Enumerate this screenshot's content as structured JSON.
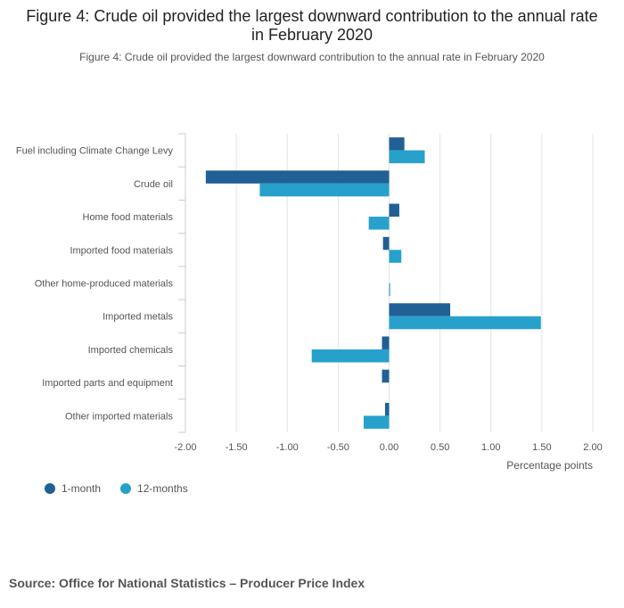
{
  "chart_data": {
    "type": "bar",
    "orientation": "horizontal",
    "title": "Figure 4: Crude oil provided the largest downward contribution to the annual rate in February 2020",
    "subtitle": "Figure 4: Crude oil provided the largest downward contribution to the annual rate in February 2020",
    "categories": [
      "Fuel including Climate Change Levy",
      "Crude oil",
      "Home food materials",
      "Imported food materials",
      "Other home-produced materials",
      "Imported metals",
      "Imported chemicals",
      "Imported parts and equipment",
      "Other imported materials"
    ],
    "series": [
      {
        "name": "1-month",
        "color": "#206095",
        "values": [
          0.15,
          -1.8,
          0.1,
          -0.06,
          0.0,
          0.6,
          -0.07,
          -0.07,
          -0.04
        ]
      },
      {
        "name": "12-months",
        "color": "#27a0cc",
        "values": [
          0.35,
          -1.27,
          -0.2,
          0.12,
          0.01,
          1.49,
          -0.76,
          0.0,
          -0.25
        ]
      }
    ],
    "xlim": [
      -2.0,
      2.0
    ],
    "xticks": [
      "-2.00",
      "-1.50",
      "-1.00",
      "-0.50",
      "0.00",
      "0.50",
      "1.00",
      "1.50",
      "2.00"
    ],
    "xtick_values": [
      -2.0,
      -1.5,
      -1.0,
      -0.5,
      0.0,
      0.5,
      1.0,
      1.5,
      2.0
    ],
    "xlabel": "Percentage points",
    "legend_position": "bottom-left"
  },
  "legend": {
    "items": [
      "1-month",
      "12-months"
    ]
  },
  "source": "Source: Office for National Statistics – Producer Price Index"
}
